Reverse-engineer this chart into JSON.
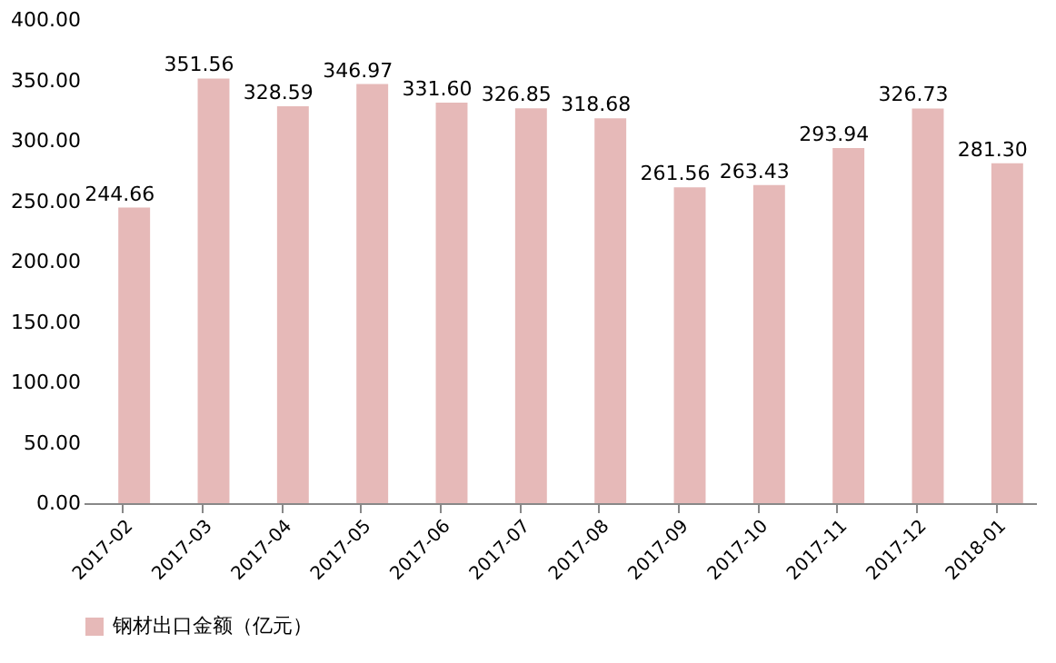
{
  "chart_data": {
    "type": "bar",
    "categories": [
      "2017-02",
      "2017-03",
      "2017-04",
      "2017-05",
      "2017-06",
      "2017-07",
      "2017-08",
      "2017-09",
      "2017-10",
      "2017-11",
      "2017-12",
      "2018-01"
    ],
    "series": [
      {
        "name": "钢材出口金额（亿元）",
        "color": "#e6b9b8",
        "values": [
          244.66,
          351.56,
          328.59,
          346.97,
          331.6,
          326.85,
          318.68,
          261.56,
          263.43,
          293.94,
          326.73,
          281.3
        ],
        "value_labels": [
          "244.66",
          "351.56",
          "328.59",
          "346.97",
          "331.60",
          "326.85",
          "318.68",
          "261.56",
          "263.43",
          "293.94",
          "326.73",
          "281.30"
        ]
      }
    ],
    "ylim": [
      0,
      400
    ],
    "yticks": [
      {
        "value": 0,
        "label": "0.00"
      },
      {
        "value": 50,
        "label": "50.00"
      },
      {
        "value": 100,
        "label": "100.00"
      },
      {
        "value": 150,
        "label": "150.00"
      },
      {
        "value": 200,
        "label": "200.00"
      },
      {
        "value": 250,
        "label": "250.00"
      },
      {
        "value": 300,
        "label": "300.00"
      },
      {
        "value": 350,
        "label": "350.00"
      },
      {
        "value": 400,
        "label": "400.00"
      }
    ],
    "grid": false,
    "legend": "bottom"
  }
}
